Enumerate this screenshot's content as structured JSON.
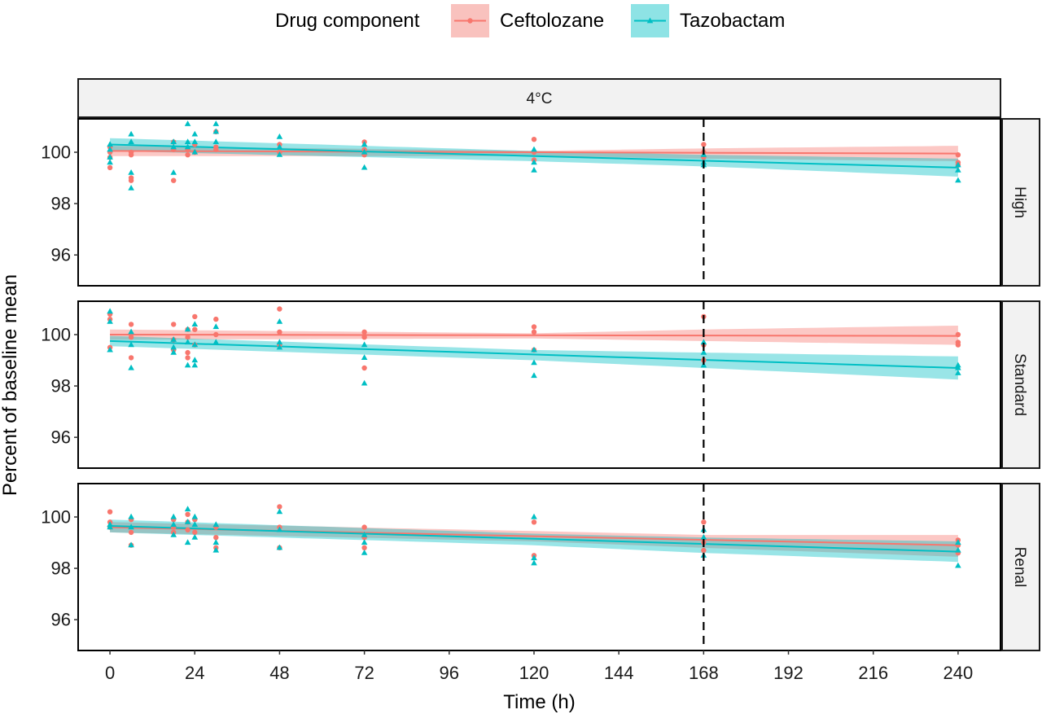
{
  "chart_data": {
    "type": "scatter",
    "legend": {
      "title": "Drug component",
      "placement": "top",
      "entries": [
        {
          "name": "Ceftolozane",
          "color": "#F8766D",
          "band_color": "#F9C2BE",
          "marker": "circle"
        },
        {
          "name": "Tazobactam",
          "color": "#00BFC4",
          "band_color": "#8EE3E5",
          "marker": "triangle"
        }
      ]
    },
    "column_strip": "4°C",
    "xlabel": "Time (h)",
    "ylabel": "Percent of baseline mean",
    "xlim": [
      -9,
      252
    ],
    "ylim": [
      94.8,
      101.3
    ],
    "x_ticks": [
      0,
      24,
      48,
      72,
      96,
      120,
      144,
      168,
      192,
      216,
      240
    ],
    "y_ticks": [
      96,
      98,
      100
    ],
    "vline_x": 168,
    "grid": false,
    "panels": [
      {
        "strip": "High",
        "series": [
          {
            "name": "Ceftolozane",
            "fit": {
              "x": [
                0,
                240
              ],
              "y": [
                100.05,
                99.95
              ]
            },
            "band": {
              "x": [
                0,
                120,
                168,
                240
              ],
              "lower": [
                99.85,
                99.85,
                99.75,
                99.65
              ],
              "upper": [
                100.25,
                100.05,
                100.15,
                100.25
              ]
            },
            "points": [
              [
                0,
                100.0
              ],
              [
                0,
                100.2
              ],
              [
                0,
                99.8
              ],
              [
                0,
                99.4
              ],
              [
                6,
                100.0
              ],
              [
                6,
                99.9
              ],
              [
                6,
                99.0
              ],
              [
                6,
                98.9
              ],
              [
                18,
                100.4
              ],
              [
                18,
                100.1
              ],
              [
                18,
                98.9
              ],
              [
                22,
                100.1
              ],
              [
                22,
                99.9
              ],
              [
                24,
                100.3
              ],
              [
                24,
                100.0
              ],
              [
                30,
                100.8
              ],
              [
                30,
                100.2
              ],
              [
                30,
                100.1
              ],
              [
                48,
                100.3
              ],
              [
                48,
                100.0
              ],
              [
                72,
                100.4
              ],
              [
                72,
                100.1
              ],
              [
                72,
                99.9
              ],
              [
                120,
                100.5
              ],
              [
                120,
                100.0
              ],
              [
                120,
                99.7
              ],
              [
                168,
                100.3
              ],
              [
                168,
                100.0
              ],
              [
                168,
                99.8
              ],
              [
                240,
                99.9
              ],
              [
                240,
                99.6
              ],
              [
                240,
                99.5
              ]
            ]
          },
          {
            "name": "Tazobactam",
            "fit": {
              "x": [
                0,
                240
              ],
              "y": [
                100.3,
                99.4
              ]
            },
            "band": {
              "x": [
                0,
                120,
                168,
                240
              ],
              "lower": [
                100.05,
                99.65,
                99.45,
                99.05
              ],
              "upper": [
                100.55,
                100.05,
                99.9,
                99.75
              ]
            },
            "points": [
              [
                0,
                100.3
              ],
              [
                0,
                100.1
              ],
              [
                0,
                99.8
              ],
              [
                0,
                99.6
              ],
              [
                6,
                100.7
              ],
              [
                6,
                100.4
              ],
              [
                6,
                99.2
              ],
              [
                6,
                98.6
              ],
              [
                18,
                100.4
              ],
              [
                18,
                100.2
              ],
              [
                18,
                99.2
              ],
              [
                22,
                101.1
              ],
              [
                22,
                100.4
              ],
              [
                22,
                100.2
              ],
              [
                24,
                100.7
              ],
              [
                24,
                100.4
              ],
              [
                24,
                100.0
              ],
              [
                30,
                101.1
              ],
              [
                30,
                100.8
              ],
              [
                30,
                100.4
              ],
              [
                48,
                100.6
              ],
              [
                48,
                100.2
              ],
              [
                48,
                99.9
              ],
              [
                72,
                100.3
              ],
              [
                72,
                100.0
              ],
              [
                72,
                99.4
              ],
              [
                120,
                100.1
              ],
              [
                120,
                99.6
              ],
              [
                120,
                99.3
              ],
              [
                168,
                99.9
              ],
              [
                168,
                99.6
              ],
              [
                168,
                99.5
              ],
              [
                240,
                99.5
              ],
              [
                240,
                99.3
              ],
              [
                240,
                98.9
              ]
            ]
          }
        ]
      },
      {
        "strip": "Standard",
        "series": [
          {
            "name": "Ceftolozane",
            "fit": {
              "x": [
                0,
                240
              ],
              "y": [
                100.0,
                99.95
              ]
            },
            "band": {
              "x": [
                0,
                120,
                168,
                240
              ],
              "lower": [
                99.8,
                99.85,
                99.75,
                99.6
              ],
              "upper": [
                100.2,
                100.05,
                100.2,
                100.35
              ]
            },
            "points": [
              [
                0,
                100.8
              ],
              [
                0,
                100.6
              ],
              [
                0,
                99.5
              ],
              [
                6,
                100.4
              ],
              [
                6,
                99.9
              ],
              [
                6,
                99.1
              ],
              [
                18,
                100.4
              ],
              [
                18,
                99.8
              ],
              [
                18,
                99.4
              ],
              [
                22,
                100.2
              ],
              [
                22,
                99.9
              ],
              [
                22,
                99.3
              ],
              [
                22,
                99.1
              ],
              [
                24,
                100.7
              ],
              [
                24,
                100.2
              ],
              [
                24,
                99.6
              ],
              [
                30,
                100.6
              ],
              [
                30,
                100.0
              ],
              [
                48,
                101.0
              ],
              [
                48,
                100.1
              ],
              [
                48,
                99.6
              ],
              [
                72,
                100.1
              ],
              [
                72,
                99.9
              ],
              [
                72,
                98.7
              ],
              [
                120,
                100.3
              ],
              [
                120,
                100.1
              ],
              [
                120,
                99.4
              ],
              [
                168,
                100.7
              ],
              [
                168,
                99.6
              ],
              [
                168,
                99.0
              ],
              [
                240,
                100.0
              ],
              [
                240,
                99.7
              ],
              [
                240,
                99.6
              ]
            ]
          },
          {
            "name": "Tazobactam",
            "fit": {
              "x": [
                0,
                240
              ],
              "y": [
                99.75,
                98.7
              ]
            },
            "band": {
              "x": [
                0,
                120,
                168,
                240
              ],
              "lower": [
                99.55,
                99.0,
                98.7,
                98.25
              ],
              "upper": [
                99.95,
                99.4,
                99.3,
                99.15
              ]
            },
            "points": [
              [
                0,
                100.9
              ],
              [
                0,
                100.5
              ],
              [
                0,
                99.4
              ],
              [
                6,
                100.1
              ],
              [
                6,
                99.6
              ],
              [
                6,
                98.7
              ],
              [
                18,
                99.8
              ],
              [
                18,
                99.5
              ],
              [
                18,
                99.3
              ],
              [
                22,
                100.2
              ],
              [
                22,
                99.7
              ],
              [
                22,
                98.8
              ],
              [
                24,
                100.4
              ],
              [
                24,
                99.6
              ],
              [
                24,
                99.0
              ],
              [
                24,
                98.8
              ],
              [
                30,
                100.3
              ],
              [
                30,
                99.7
              ],
              [
                48,
                100.5
              ],
              [
                48,
                99.7
              ],
              [
                48,
                99.5
              ],
              [
                72,
                99.6
              ],
              [
                72,
                99.1
              ],
              [
                72,
                98.1
              ],
              [
                120,
                99.4
              ],
              [
                120,
                98.9
              ],
              [
                120,
                98.4
              ],
              [
                168,
                99.7
              ],
              [
                168,
                99.3
              ],
              [
                168,
                98.8
              ],
              [
                240,
                98.8
              ],
              [
                240,
                98.7
              ],
              [
                240,
                98.5
              ]
            ]
          }
        ]
      },
      {
        "strip": "Renal",
        "series": [
          {
            "name": "Ceftolozane",
            "fit": {
              "x": [
                0,
                240
              ],
              "y": [
                99.6,
                98.9
              ]
            },
            "band": {
              "x": [
                0,
                120,
                168,
                240
              ],
              "lower": [
                99.4,
                99.05,
                98.8,
                98.45
              ],
              "upper": [
                99.8,
                99.45,
                99.3,
                99.3
              ]
            },
            "points": [
              [
                0,
                100.2
              ],
              [
                0,
                99.8
              ],
              [
                0,
                99.6
              ],
              [
                6,
                99.9
              ],
              [
                6,
                99.4
              ],
              [
                6,
                98.9
              ],
              [
                18,
                99.9
              ],
              [
                18,
                99.6
              ],
              [
                18,
                99.4
              ],
              [
                22,
                100.1
              ],
              [
                22,
                99.8
              ],
              [
                22,
                99.5
              ],
              [
                24,
                99.9
              ],
              [
                24,
                99.4
              ],
              [
                30,
                99.6
              ],
              [
                30,
                99.2
              ],
              [
                30,
                98.8
              ],
              [
                48,
                100.4
              ],
              [
                48,
                99.6
              ],
              [
                48,
                98.8
              ],
              [
                72,
                99.6
              ],
              [
                72,
                99.2
              ],
              [
                72,
                98.8
              ],
              [
                120,
                99.8
              ],
              [
                120,
                98.5
              ],
              [
                168,
                99.8
              ],
              [
                168,
                99.0
              ],
              [
                168,
                98.7
              ],
              [
                240,
                99.1
              ],
              [
                240,
                98.9
              ],
              [
                240,
                98.6
              ]
            ]
          },
          {
            "name": "Tazobactam",
            "fit": {
              "x": [
                0,
                240
              ],
              "y": [
                99.65,
                98.65
              ]
            },
            "band": {
              "x": [
                0,
                120,
                168,
                240
              ],
              "lower": [
                99.4,
                98.9,
                98.6,
                98.25
              ],
              "upper": [
                99.9,
                99.35,
                99.2,
                99.05
              ]
            },
            "points": [
              [
                0,
                99.7
              ],
              [
                0,
                99.6
              ],
              [
                6,
                100.0
              ],
              [
                6,
                99.6
              ],
              [
                6,
                98.9
              ],
              [
                18,
                100.0
              ],
              [
                18,
                99.7
              ],
              [
                18,
                99.3
              ],
              [
                22,
                100.3
              ],
              [
                22,
                99.8
              ],
              [
                22,
                99.0
              ],
              [
                24,
                100.0
              ],
              [
                24,
                99.7
              ],
              [
                24,
                99.2
              ],
              [
                30,
                99.7
              ],
              [
                30,
                99.0
              ],
              [
                30,
                98.7
              ],
              [
                48,
                100.2
              ],
              [
                48,
                99.5
              ],
              [
                48,
                98.8
              ],
              [
                72,
                99.3
              ],
              [
                72,
                99.0
              ],
              [
                72,
                98.6
              ],
              [
                120,
                100.0
              ],
              [
                120,
                98.4
              ],
              [
                120,
                98.2
              ],
              [
                168,
                99.5
              ],
              [
                168,
                99.2
              ],
              [
                168,
                98.5
              ],
              [
                240,
                99.0
              ],
              [
                240,
                98.7
              ],
              [
                240,
                98.1
              ]
            ]
          }
        ]
      }
    ]
  }
}
